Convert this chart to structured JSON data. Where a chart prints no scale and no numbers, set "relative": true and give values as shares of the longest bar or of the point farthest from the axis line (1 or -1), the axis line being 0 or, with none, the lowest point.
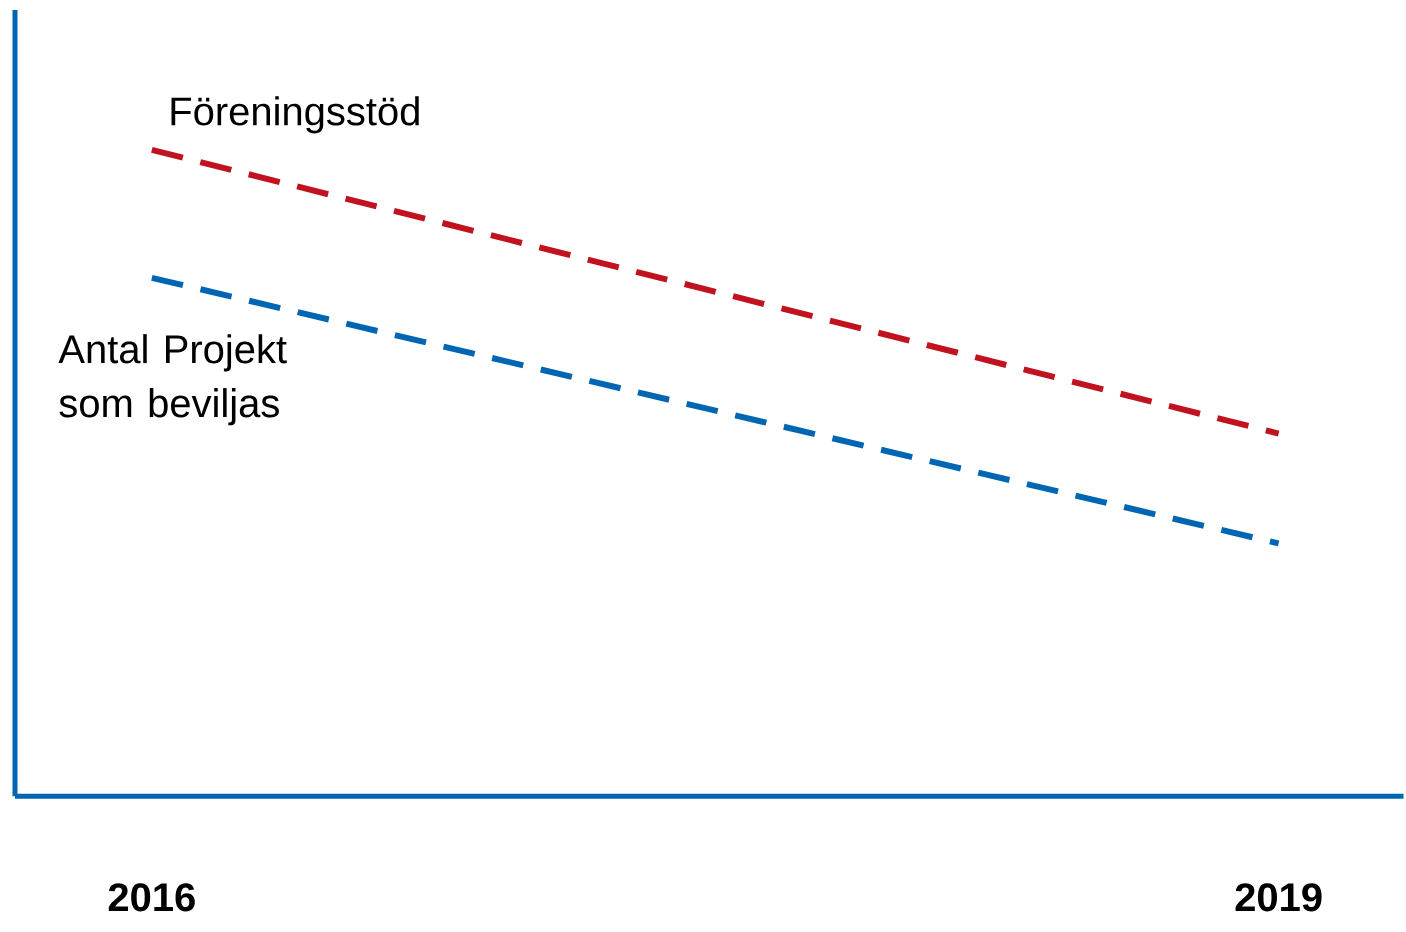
{
  "chart_data": {
    "type": "line",
    "relative": true,
    "line_style": "dashed",
    "categories": [
      "2016",
      "2019"
    ],
    "series": [
      {
        "name": "Föreningsstöd",
        "color": "#c0121f",
        "values": [
          1,
          0.561
        ]
      },
      {
        "name": "Antal Projekt som beviljas",
        "color": "#0066b3",
        "values": [
          0.802,
          0.391
        ]
      }
    ]
  }
}
